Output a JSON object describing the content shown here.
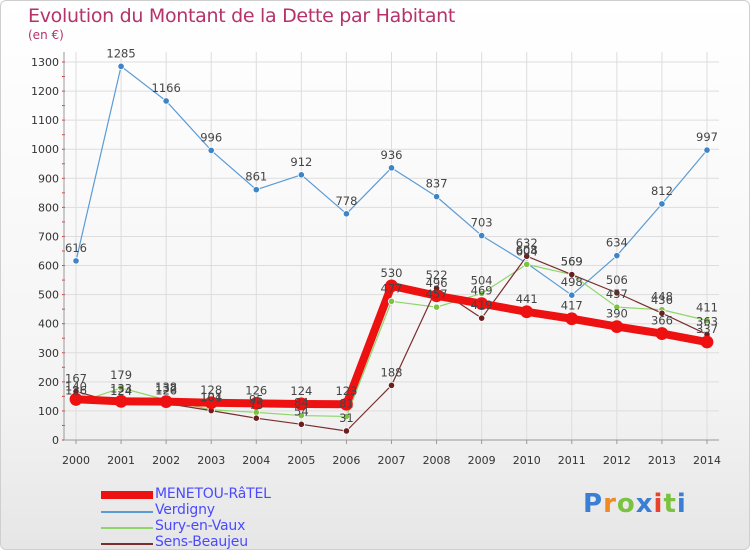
{
  "header": {
    "title": "Evolution du Montant de la Dette par Habitant",
    "unit": "(en €)"
  },
  "logo": {
    "text": "Proxiti",
    "colors": [
      "#3b7fd4",
      "#f08a24",
      "#7cc242",
      "#3b7fd4",
      "#e8432e",
      "#7cc242",
      "#3b7fd4"
    ]
  },
  "chart_data": {
    "type": "line",
    "x": [
      2000,
      2001,
      2002,
      2003,
      2004,
      2005,
      2006,
      2007,
      2008,
      2009,
      2010,
      2011,
      2012,
      2013,
      2014
    ],
    "ylim": [
      0,
      1300
    ],
    "yticks": [
      0,
      100,
      200,
      300,
      400,
      500,
      600,
      700,
      800,
      900,
      1000,
      1100,
      1200,
      1300
    ],
    "grid": true,
    "legend_position": "bottom-left",
    "series": [
      {
        "name": "Verdigny",
        "color": "#5b9bd5",
        "marker": "#3d85c6",
        "width": 1.2,
        "values": [
          616,
          1285,
          1166,
          996,
          861,
          912,
          778,
          936,
          837,
          703,
          608,
          498,
          634,
          812,
          997
        ]
      },
      {
        "name": "Sury-en-Vaux",
        "color": "#8ed66a",
        "marker": "#7cc242",
        "width": 1.2,
        "values": [
          126,
          179,
          138,
          104,
          95,
          84,
          81,
          477,
          457,
          504,
          604,
          569,
          457,
          448,
          411
        ]
      },
      {
        "name": "Sens-Beaujeu",
        "color": "#7a2e2e",
        "marker": "#6b1f1f",
        "width": 1.2,
        "values": [
          167,
          124,
          126,
          101,
          75,
          54,
          31,
          188,
          522,
          419,
          632,
          569,
          506,
          436,
          363
        ]
      },
      {
        "name": "MENETOU-RâTEL",
        "color": "#ee1111",
        "marker": "#ee1111",
        "width": 8,
        "values": [
          140,
          133,
          132,
          128,
          126,
          124,
          123,
          530,
          496,
          469,
          441,
          417,
          390,
          366,
          337
        ]
      }
    ],
    "data_labels": {
      "Verdigny": [
        "616",
        "1285",
        "1166",
        "996",
        "861",
        "912",
        "778",
        "936",
        "837",
        "703",
        "608",
        "498",
        "634",
        "812",
        "997"
      ],
      "Sury-en-Vaux": [
        "126",
        "179",
        "138",
        "104",
        "95",
        "84",
        "81",
        "477",
        "457",
        "504",
        "604",
        "569",
        "457",
        "448",
        "411"
      ],
      "Sens-Beaujeu": [
        "167",
        "124",
        "126",
        "101",
        "75",
        "54",
        "31",
        "188",
        "522",
        "419",
        "632",
        "569",
        "506",
        "436",
        "363"
      ],
      "MENETOU-RâTEL": [
        "140",
        "133",
        "132",
        "128",
        "126",
        "124",
        "123",
        "530",
        "496",
        "469",
        "441",
        "417",
        "390",
        "366",
        "337"
      ]
    }
  },
  "legend": {
    "items": [
      {
        "label": "MENETOU-RâTEL",
        "color": "#ee1111",
        "thick": true
      },
      {
        "label": "Verdigny",
        "color": "#5b9bd5",
        "thick": false
      },
      {
        "label": "Sury-en-Vaux",
        "color": "#8ed66a",
        "thick": false
      },
      {
        "label": "Sens-Beaujeu",
        "color": "#7a2e2e",
        "thick": false
      }
    ]
  }
}
